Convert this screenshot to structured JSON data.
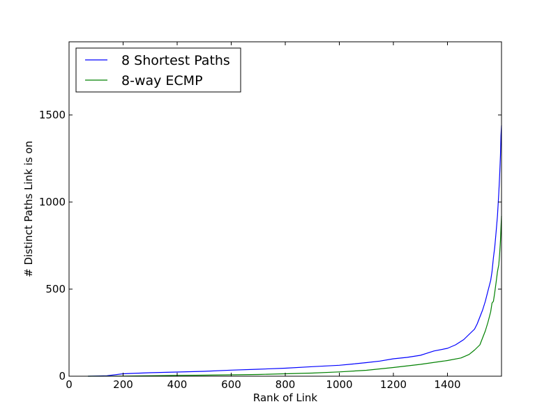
{
  "chart_data": {
    "type": "line",
    "title": "",
    "xlabel": "Rank of Link",
    "ylabel": "# Distinct Paths Link is on",
    "xlim": [
      0,
      1600
    ],
    "ylim": [
      0,
      1920
    ],
    "xticks": [
      0,
      200,
      400,
      600,
      800,
      1000,
      1200,
      1400
    ],
    "yticks": [
      0,
      500,
      1000,
      1500
    ],
    "grid": false,
    "legend_position": "top-left",
    "series": [
      {
        "name": "8 Shortest Paths",
        "color": "#0000ff",
        "x": [
          70,
          140,
          200,
          300,
          400,
          500,
          600,
          700,
          800,
          900,
          1000,
          1050,
          1100,
          1150,
          1200,
          1250,
          1300,
          1350,
          1400,
          1430,
          1460,
          1480,
          1500,
          1510,
          1520,
          1530,
          1540,
          1550,
          1560,
          1565,
          1570,
          1575,
          1580,
          1585,
          1590,
          1593,
          1596,
          1598,
          1600
        ],
        "y": [
          0,
          3,
          14,
          20,
          24,
          28,
          35,
          40,
          46,
          55,
          63,
          70,
          78,
          87,
          100,
          108,
          120,
          145,
          160,
          180,
          210,
          240,
          270,
          300,
          340,
          380,
          430,
          490,
          550,
          600,
          680,
          740,
          830,
          920,
          1050,
          1150,
          1270,
          1380,
          1440
        ]
      },
      {
        "name": "8-way ECMP",
        "color": "#008000",
        "x": [
          70,
          200,
          300,
          400,
          500,
          600,
          700,
          800,
          900,
          1000,
          1100,
          1200,
          1300,
          1400,
          1450,
          1480,
          1500,
          1520,
          1530,
          1540,
          1550,
          1560,
          1565,
          1570,
          1575,
          1580,
          1585,
          1590,
          1593,
          1596,
          1598,
          1600
        ],
        "y": [
          0,
          1,
          3,
          5,
          6,
          8,
          10,
          14,
          18,
          25,
          34,
          50,
          68,
          90,
          105,
          125,
          150,
          180,
          220,
          260,
          310,
          370,
          420,
          430,
          480,
          540,
          600,
          640,
          700,
          780,
          850,
          920
        ]
      }
    ]
  }
}
